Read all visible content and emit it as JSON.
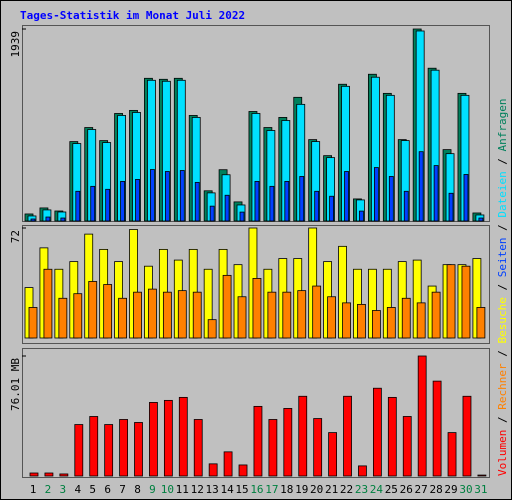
{
  "chart_data": [
    {
      "type": "bar",
      "title": "Tages-Statistik im Monat Juli 2022",
      "legend_separator": "/",
      "ylim": [
        0,
        1939
      ],
      "yticks": [
        1939
      ],
      "series": [
        {
          "name": "Anfragen",
          "color": "#00805c",
          "values": [
            71,
            132,
            101,
            802,
            944,
            812,
            1086,
            1117,
            1441,
            1431,
            1441,
            1066,
            305,
            518,
            193,
            1106,
            944,
            1046,
            1249,
            822,
            660,
            1381,
            223,
            1482,
            1289,
            822,
            1939,
            1543,
            721,
            1289,
            81
          ]
        },
        {
          "name": "Dateien",
          "color": "#00e0ff",
          "values": [
            51,
            112,
            91,
            782,
            924,
            792,
            1066,
            1096,
            1421,
            1411,
            1421,
            1046,
            284,
            467,
            162,
            1086,
            914,
            1015,
            1178,
            802,
            640,
            1360,
            213,
            1452,
            1269,
            812,
            1919,
            1523,
            680,
            1269,
            61
          ]
        },
        {
          "name": "Seiten",
          "color": "#0040ff",
          "values": [
            20,
            40,
            30,
            300,
            350,
            320,
            400,
            420,
            520,
            500,
            510,
            390,
            150,
            260,
            90,
            400,
            350,
            400,
            450,
            300,
            250,
            500,
            100,
            540,
            450,
            300,
            700,
            560,
            280,
            470,
            30
          ]
        }
      ]
    },
    {
      "type": "bar",
      "ylim": [
        0,
        72
      ],
      "yticks": [
        72
      ],
      "series": [
        {
          "name": "Besuche",
          "color": "#ffff00",
          "values": [
            33,
            59,
            45,
            50,
            68,
            58,
            50,
            71,
            47,
            58,
            51,
            58,
            45,
            58,
            48,
            72,
            45,
            52,
            52,
            72,
            50,
            60,
            45,
            45,
            45,
            50,
            51,
            34,
            48,
            48,
            52
          ]
        },
        {
          "name": "Rechner",
          "color": "#ff8000",
          "values": [
            20,
            45,
            26,
            29,
            37,
            35,
            26,
            30,
            32,
            30,
            31,
            30,
            12,
            41,
            27,
            39,
            30,
            30,
            31,
            34,
            27,
            23,
            22,
            18,
            20,
            26,
            23,
            30,
            48,
            47,
            20
          ]
        }
      ]
    },
    {
      "type": "bar",
      "ylim": [
        0,
        76.01
      ],
      "yticks": [
        {
          "value": 76.01,
          "label": "76.01 MB"
        }
      ],
      "categories": [
        "1",
        "2",
        "3",
        "4",
        "5",
        "6",
        "7",
        "8",
        "9",
        "10",
        "11",
        "12",
        "13",
        "14",
        "15",
        "16",
        "17",
        "18",
        "19",
        "20",
        "21",
        "22",
        "23",
        "24",
        "25",
        "26",
        "27",
        "28",
        "29",
        "30",
        "31"
      ],
      "category_colors": [
        "#000000",
        "#008040",
        "#008040",
        "#000000",
        "#000000",
        "#000000",
        "#000000",
        "#000000",
        "#008040",
        "#008040",
        "#000000",
        "#000000",
        "#000000",
        "#000000",
        "#000000",
        "#008040",
        "#008040",
        "#000000",
        "#000000",
        "#000000",
        "#000000",
        "#000000",
        "#008040",
        "#008040",
        "#000000",
        "#000000",
        "#000000",
        "#000000",
        "#000000",
        "#008040",
        "#008040"
      ],
      "series": [
        {
          "name": "Volumen",
          "color": "#ff0000",
          "values": [
            1.9,
            1.9,
            1.3,
            32.6,
            37.7,
            32.6,
            35.8,
            33.9,
            46.6,
            47.9,
            49.8,
            35.8,
            7.7,
            15.3,
            7.0,
            44.1,
            35.8,
            42.8,
            50.5,
            36.4,
            27.5,
            50.5,
            6.4,
            55.6,
            49.8,
            37.7,
            76.01,
            60.1,
            27.5,
            50.5,
            0.6
          ]
        }
      ]
    }
  ]
}
